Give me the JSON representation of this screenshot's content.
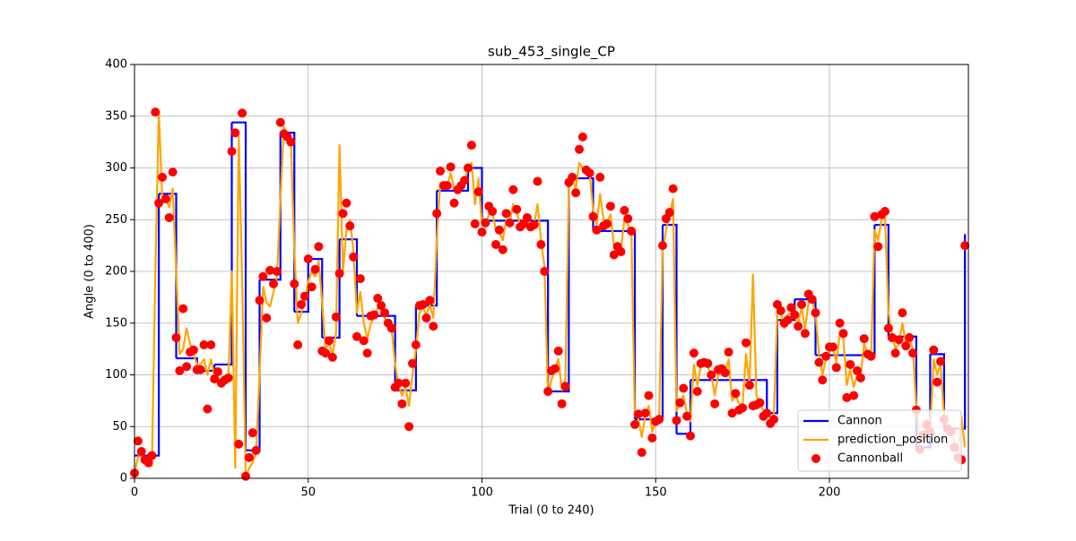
{
  "chart_data": {
    "type": "line",
    "title": "sub_453_single_CP",
    "x_label": "Trial (0 to 240)",
    "y_label": "Angle (0 to 400)",
    "xlim": [
      0,
      240
    ],
    "ylim": [
      0,
      400
    ],
    "xticks": [
      0,
      50,
      100,
      150,
      200
    ],
    "yticks": [
      0,
      50,
      100,
      150,
      200,
      250,
      300,
      350,
      400
    ],
    "grid": true,
    "legend": "lower right",
    "x": [
      0,
      1,
      2,
      3,
      4,
      5,
      6,
      7,
      8,
      9,
      10,
      11,
      12,
      13,
      14,
      15,
      16,
      17,
      18,
      19,
      20,
      21,
      22,
      23,
      24,
      25,
      26,
      27,
      28,
      29,
      30,
      31,
      32,
      33,
      34,
      35,
      36,
      37,
      38,
      39,
      40,
      41,
      42,
      43,
      44,
      45,
      46,
      47,
      48,
      49,
      50,
      51,
      52,
      53,
      54,
      55,
      56,
      57,
      58,
      59,
      60,
      61,
      62,
      63,
      64,
      65,
      66,
      67,
      68,
      69,
      70,
      71,
      72,
      73,
      74,
      75,
      76,
      77,
      78,
      79,
      80,
      81,
      82,
      83,
      84,
      85,
      86,
      87,
      88,
      89,
      90,
      91,
      92,
      93,
      94,
      95,
      96,
      97,
      98,
      99,
      100,
      101,
      102,
      103,
      104,
      105,
      106,
      107,
      108,
      109,
      110,
      111,
      112,
      113,
      114,
      115,
      116,
      117,
      118,
      119,
      120,
      121,
      122,
      123,
      124,
      125,
      126,
      127,
      128,
      129,
      130,
      131,
      132,
      133,
      134,
      135,
      136,
      137,
      138,
      139,
      140,
      141,
      142,
      143,
      144,
      145,
      146,
      147,
      148,
      149,
      150,
      151,
      152,
      153,
      154,
      155,
      156,
      157,
      158,
      159,
      160,
      161,
      162,
      163,
      164,
      165,
      166,
      167,
      168,
      169,
      170,
      171,
      172,
      173,
      174,
      175,
      176,
      177,
      178,
      179,
      180,
      181,
      182,
      183,
      184,
      185,
      186,
      187,
      188,
      189,
      190,
      191,
      192,
      193,
      194,
      195,
      196,
      197,
      198,
      199,
      200,
      201,
      202,
      203,
      204,
      205,
      206,
      207,
      208,
      209,
      210,
      211,
      212,
      213,
      214,
      215,
      216,
      217,
      218,
      219,
      220,
      221,
      222,
      223,
      224,
      225,
      226,
      227,
      228,
      229,
      230,
      231,
      232,
      233,
      234,
      235,
      236,
      237,
      238,
      239
    ],
    "series": [
      {
        "name": "Cannon",
        "style": "step",
        "color": "#0000ff",
        "values": [
          22,
          22,
          22,
          22,
          22,
          22,
          22,
          275,
          275,
          275,
          275,
          275,
          116,
          116,
          116,
          116,
          116,
          116,
          104,
          104,
          104,
          104,
          104,
          110,
          110,
          110,
          110,
          110,
          344,
          344,
          344,
          344,
          27,
          27,
          27,
          27,
          192,
          192,
          192,
          192,
          192,
          192,
          334,
          334,
          334,
          334,
          161,
          161,
          161,
          161,
          212,
          212,
          212,
          212,
          136,
          136,
          136,
          136,
          136,
          231,
          231,
          231,
          231,
          231,
          157,
          157,
          157,
          157,
          157,
          157,
          157,
          157,
          157,
          157,
          157,
          85,
          85,
          85,
          85,
          85,
          85,
          167,
          167,
          167,
          167,
          167,
          167,
          278,
          278,
          278,
          278,
          278,
          278,
          278,
          278,
          278,
          300,
          300,
          300,
          300,
          249,
          249,
          249,
          249,
          249,
          249,
          249,
          249,
          249,
          249,
          249,
          249,
          249,
          249,
          249,
          249,
          249,
          249,
          249,
          84,
          84,
          84,
          84,
          84,
          84,
          290,
          290,
          290,
          290,
          290,
          290,
          290,
          239,
          239,
          239,
          239,
          239,
          239,
          239,
          239,
          239,
          239,
          239,
          239,
          57,
          57,
          57,
          57,
          57,
          57,
          57,
          57,
          245,
          245,
          245,
          245,
          43,
          43,
          43,
          43,
          95,
          95,
          95,
          95,
          95,
          95,
          95,
          95,
          95,
          95,
          95,
          95,
          95,
          95,
          95,
          95,
          95,
          95,
          95,
          95,
          95,
          95,
          63,
          63,
          63,
          153,
          153,
          153,
          153,
          153,
          173,
          173,
          173,
          173,
          173,
          173,
          119,
          119,
          119,
          119,
          119,
          119,
          119,
          119,
          119,
          119,
          119,
          119,
          119,
          119,
          119,
          119,
          119,
          245,
          245,
          245,
          245,
          137,
          137,
          137,
          137,
          137,
          137,
          137,
          137,
          30,
          30,
          30,
          30,
          120,
          120,
          120,
          120,
          48,
          48,
          48,
          48,
          48,
          48,
          236
        ]
      },
      {
        "name": "prediction_position",
        "style": "line",
        "color": "#ffa500",
        "values": [
          5,
          20,
          25,
          15,
          20,
          12,
          200,
          354,
          270,
          270,
          262,
          280,
          200,
          120,
          125,
          145,
          130,
          120,
          110,
          110,
          115,
          100,
          115,
          100,
          98,
          94,
          95,
          96,
          200,
          10,
          330,
          190,
          2,
          10,
          15,
          25,
          100,
          185,
          170,
          166,
          180,
          195,
          270,
          340,
          332,
          328,
          220,
          150,
          160,
          170,
          190,
          200,
          195,
          210,
          170,
          125,
          130,
          120,
          140,
          322,
          200,
          240,
          250,
          220,
          160,
          180,
          150,
          135,
          150,
          155,
          165,
          163,
          155,
          150,
          145,
          110,
          90,
          80,
          88,
          70,
          100,
          125,
          160,
          165,
          158,
          168,
          155,
          230,
          285,
          282,
          283,
          295,
          280,
          280,
          283,
          287,
          300,
          305,
          265,
          290,
          245,
          243,
          255,
          257,
          240,
          238,
          230,
          250,
          248,
          265,
          258,
          245,
          245,
          250,
          245,
          246,
          265,
          230,
          205,
          80,
          95,
          105,
          115,
          85,
          95,
          280,
          290,
          280,
          305,
          300,
          295,
          295,
          260,
          245,
          275,
          250,
          248,
          255,
          225,
          228,
          222,
          250,
          245,
          238,
          60,
          58,
          40,
          60,
          70,
          45,
          55,
          58,
          220,
          240,
          255,
          270,
          65,
          72,
          80,
          63,
          55,
          110,
          90,
          108,
          110,
          108,
          100,
          80,
          100,
          103,
          102,
          115,
          75,
          80,
          72,
          70,
          120,
          90,
          197,
          80,
          72,
          65,
          64,
          58,
          60,
          160,
          160,
          145,
          158,
          160,
          155,
          150,
          165,
          145,
          170,
          172,
          160,
          120,
          100,
          115,
          122,
          125,
          112,
          140,
          135,
          90,
          105,
          88,
          100,
          100,
          130,
          120,
          118,
          240,
          230,
          250,
          252,
          160,
          140,
          125,
          130,
          150,
          130,
          135,
          125,
          70,
          35,
          40,
          50,
          45,
          115,
          100,
          110,
          60,
          50,
          45,
          35,
          25,
          60,
          30
        ]
      },
      {
        "name": "Cannonball",
        "style": "scatter",
        "color": "#ff0000",
        "values": [
          5,
          36,
          26,
          18,
          15,
          22,
          354,
          266,
          291,
          270,
          252,
          296,
          136,
          104,
          164,
          108,
          122,
          124,
          105,
          105,
          129,
          67,
          129,
          96,
          103,
          92,
          95,
          97,
          316,
          334,
          33,
          353,
          2,
          20,
          44,
          27,
          172,
          195,
          155,
          201,
          188,
          200,
          344,
          333,
          330,
          325,
          188,
          129,
          168,
          176,
          212,
          185,
          202,
          224,
          123,
          121,
          133,
          117,
          156,
          198,
          256,
          266,
          244,
          214,
          137,
          193,
          133,
          121,
          157,
          158,
          174,
          167,
          160,
          150,
          145,
          88,
          92,
          72,
          92,
          50,
          111,
          129,
          167,
          168,
          155,
          172,
          147,
          256,
          297,
          283,
          283,
          301,
          266,
          279,
          283,
          288,
          300,
          322,
          246,
          277,
          238,
          247,
          263,
          258,
          226,
          240,
          221,
          256,
          247,
          279,
          260,
          243,
          246,
          252,
          243,
          245,
          287,
          226,
          200,
          84,
          104,
          106,
          123,
          72,
          89,
          286,
          291,
          276,
          318,
          330,
          298,
          295,
          253,
          240,
          291,
          244,
          246,
          263,
          216,
          224,
          219,
          259,
          251,
          239,
          52,
          62,
          25,
          63,
          80,
          39,
          55,
          57,
          225,
          251,
          257,
          280,
          56,
          73,
          87,
          60,
          41,
          121,
          84,
          111,
          112,
          111,
          100,
          72,
          105,
          106,
          102,
          122,
          63,
          82,
          66,
          68,
          131,
          90,
          70,
          71,
          73,
          60,
          63,
          53,
          57,
          168,
          162,
          150,
          153,
          165,
          158,
          147,
          168,
          140,
          178,
          173,
          160,
          112,
          95,
          118,
          127,
          127,
          107,
          150,
          140,
          78,
          110,
          80,
          104,
          97,
          135,
          120,
          118,
          253,
          224,
          255,
          258,
          145,
          136,
          121,
          134,
          160,
          128,
          136,
          121,
          66,
          28,
          42,
          52,
          45,
          124,
          93,
          113,
          57,
          48,
          45,
          30,
          20,
          18,
          225
        ]
      }
    ]
  }
}
